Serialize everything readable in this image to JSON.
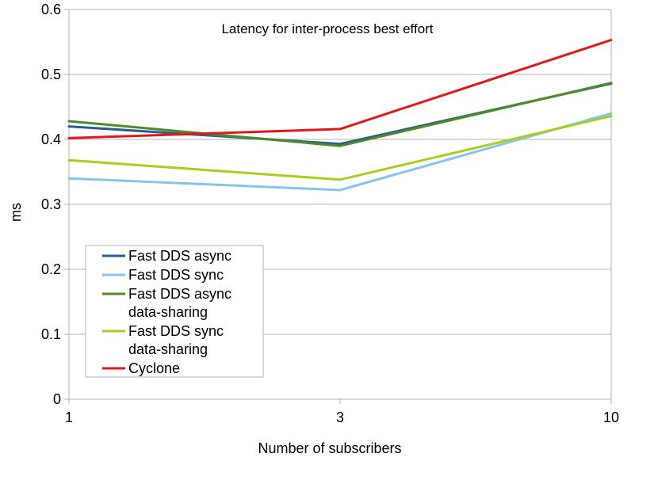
{
  "chart_data": {
    "type": "line",
    "title": "Latency for inter-process best effort",
    "xlabel": "Number of subscribers",
    "ylabel": "ms",
    "categories": [
      "1",
      "3",
      "10"
    ],
    "ylim": [
      0,
      0.6
    ],
    "yticks": [
      "0",
      "0.1",
      "0.2",
      "0.3",
      "0.4",
      "0.5",
      "0.6"
    ],
    "grid": "horizontal",
    "legend_position": "bottom-left",
    "series": [
      {
        "name": "Fast DDS async",
        "name_lines": [
          "Fast DDS async"
        ],
        "color": "#2a5d8f",
        "values": [
          0.42,
          0.393,
          0.486
        ]
      },
      {
        "name": "Fast DDS sync",
        "name_lines": [
          "Fast DDS sync"
        ],
        "color": "#84c5f0",
        "values": [
          0.34,
          0.322,
          0.44
        ]
      },
      {
        "name": "Fast DDS async data-sharing",
        "name_lines": [
          "Fast DDS async",
          "data-sharing"
        ],
        "color": "#4d8c27",
        "values": [
          0.428,
          0.39,
          0.487
        ]
      },
      {
        "name": "Fast DDS sync data-sharing",
        "name_lines": [
          "Fast DDS sync",
          "data-sharing"
        ],
        "color": "#a6cf1e",
        "values": [
          0.368,
          0.338,
          0.436
        ]
      },
      {
        "name": "Cyclone",
        "name_lines": [
          "Cyclone"
        ],
        "color": "#e4181c",
        "values": [
          0.402,
          0.416,
          0.553
        ]
      }
    ]
  }
}
